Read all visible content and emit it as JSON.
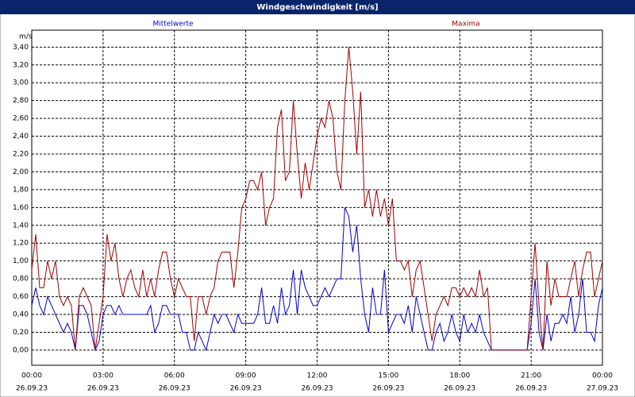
{
  "chart_data": {
    "type": "line",
    "title": "Windgeschwindigkeit [m/s]",
    "ylabel": "m/s",
    "x": [
      0,
      10,
      20,
      30,
      40,
      50,
      60,
      70,
      80,
      90,
      100,
      110,
      120,
      130,
      140,
      150,
      160,
      170,
      180,
      190,
      200,
      210,
      220,
      230,
      240,
      250,
      260,
      270,
      280,
      290,
      300,
      310,
      320,
      330,
      340,
      350,
      360,
      370,
      380,
      390,
      400,
      410,
      420,
      430,
      440,
      450,
      460,
      470,
      480,
      490,
      500,
      510,
      520,
      530,
      540,
      550,
      560,
      570,
      580,
      590,
      600,
      610,
      620,
      630,
      640,
      650,
      660,
      670,
      680,
      690,
      700,
      710,
      720,
      730,
      740,
      750,
      760,
      770,
      780,
      790,
      800,
      810,
      820,
      830,
      840,
      850,
      860,
      870,
      880,
      890,
      900,
      910,
      920,
      930,
      940,
      950,
      960,
      970,
      980,
      990,
      1000,
      1010,
      1020,
      1030,
      1040,
      1050,
      1060,
      1070,
      1080,
      1090,
      1100,
      1110,
      1120,
      1130,
      1140,
      1150,
      1160,
      1170,
      1180,
      1190,
      1200,
      1210,
      1220,
      1230,
      1240,
      1250,
      1260,
      1270,
      1280,
      1290,
      1300,
      1310,
      1320,
      1330,
      1340,
      1350,
      1360,
      1370,
      1380,
      1390,
      1400,
      1410,
      1420,
      1430,
      1440
    ],
    "series": [
      {
        "name": "Mittelwerte",
        "color": "#0000cc",
        "values": [
          0.5,
          0.7,
          0.5,
          0.4,
          0.6,
          0.5,
          0.4,
          0.3,
          0.2,
          0.3,
          0.2,
          0.0,
          0.5,
          0.5,
          0.4,
          0.2,
          0.0,
          0.1,
          0.4,
          0.5,
          0.5,
          0.4,
          0.5,
          0.4,
          0.4,
          0.4,
          0.4,
          0.4,
          0.4,
          0.4,
          0.5,
          0.2,
          0.3,
          0.5,
          0.5,
          0.4,
          0.4,
          0.4,
          0.2,
          0.2,
          0.0,
          0.0,
          0.2,
          0.1,
          0.0,
          0.2,
          0.4,
          0.3,
          0.4,
          0.4,
          0.3,
          0.2,
          0.4,
          0.3,
          0.3,
          0.3,
          0.3,
          0.4,
          0.7,
          0.3,
          0.3,
          0.5,
          0.3,
          0.7,
          0.4,
          0.5,
          0.9,
          0.4,
          0.9,
          0.7,
          0.6,
          0.5,
          0.5,
          0.6,
          0.7,
          0.6,
          0.7,
          0.8,
          0.8,
          1.6,
          1.5,
          1.1,
          1.4,
          0.8,
          0.4,
          0.2,
          0.7,
          0.4,
          0.4,
          0.9,
          0.2,
          0.3,
          0.4,
          0.4,
          0.3,
          0.5,
          0.2,
          0.6,
          0.4,
          0.2,
          0.0,
          0.0,
          0.2,
          0.3,
          0.1,
          0.2,
          0.4,
          0.2,
          0.1,
          0.4,
          0.2,
          0.3,
          0.2,
          0.4,
          0.2,
          0.1,
          0.0,
          0.0,
          0.0,
          0.0,
          0.0,
          0.0,
          0.0,
          0.0,
          0.0,
          0.0,
          0.3,
          0.8,
          0.2,
          0.0,
          0.4,
          0.1,
          0.3,
          0.3,
          0.4,
          0.3,
          0.6,
          0.2,
          0.4,
          0.8,
          0.2,
          0.2,
          0.1,
          0.5,
          0.7
        ]
      },
      {
        "name": "Maxima",
        "color": "#a00000",
        "values": [
          0.9,
          1.3,
          0.7,
          0.7,
          1.0,
          0.8,
          1.0,
          0.6,
          0.5,
          0.6,
          0.5,
          0.0,
          0.6,
          0.7,
          0.6,
          0.5,
          0.0,
          0.3,
          0.6,
          1.3,
          1.0,
          1.2,
          0.8,
          0.6,
          0.8,
          0.9,
          0.7,
          0.6,
          0.9,
          0.6,
          0.8,
          0.6,
          0.9,
          1.1,
          1.1,
          0.8,
          0.6,
          0.8,
          0.7,
          0.6,
          0.6,
          0.1,
          0.6,
          0.6,
          0.4,
          0.6,
          0.7,
          1.0,
          1.1,
          1.1,
          1.1,
          0.7,
          1.1,
          1.6,
          1.7,
          1.9,
          1.9,
          1.8,
          2.0,
          1.4,
          1.6,
          1.7,
          2.5,
          2.7,
          1.9,
          2.0,
          2.8,
          2.2,
          1.7,
          2.1,
          1.8,
          2.1,
          2.4,
          2.6,
          2.5,
          2.8,
          2.6,
          2.0,
          1.8,
          2.8,
          3.4,
          2.9,
          2.2,
          2.9,
          1.6,
          1.8,
          1.5,
          1.8,
          1.5,
          1.7,
          1.4,
          1.7,
          1.0,
          1.0,
          0.9,
          1.0,
          0.6,
          0.9,
          1.0,
          0.7,
          0.4,
          0.1,
          0.4,
          0.5,
          0.6,
          0.5,
          0.7,
          0.7,
          0.6,
          0.7,
          0.6,
          0.7,
          0.6,
          0.9,
          0.6,
          0.7,
          0.0,
          0.0,
          0.0,
          0.0,
          0.0,
          0.0,
          0.0,
          0.0,
          0.0,
          0.0,
          0.6,
          1.2,
          0.5,
          0.0,
          1.0,
          0.5,
          0.8,
          0.6,
          0.6,
          0.6,
          0.8,
          1.0,
          0.6,
          0.9,
          1.1,
          1.1,
          0.6,
          0.8,
          1.0
        ]
      }
    ],
    "xlim": [
      0,
      1440
    ],
    "xticks": [
      {
        "value": 0,
        "label": "00:00",
        "date": "26.09.23"
      },
      {
        "value": 180,
        "label": "03:00",
        "date": "26.09.23"
      },
      {
        "value": 360,
        "label": "06:00",
        "date": "26.09.23"
      },
      {
        "value": 540,
        "label": "09:00",
        "date": "26.09.23"
      },
      {
        "value": 720,
        "label": "12:00",
        "date": "26.09.23"
      },
      {
        "value": 900,
        "label": "15:00",
        "date": "26.09.23"
      },
      {
        "value": 1080,
        "label": "18:00",
        "date": "26.09.23"
      },
      {
        "value": 1260,
        "label": "21:00",
        "date": "26.09.23"
      },
      {
        "value": 1440,
        "label": "00:00",
        "date": "27.09.23"
      }
    ],
    "ylim": [
      -0.17,
      3.59
    ],
    "yticks": [
      {
        "value": 0,
        "label": "0,00"
      },
      {
        "value": 0.2,
        "label": "0,20"
      },
      {
        "value": 0.4,
        "label": "0,40"
      },
      {
        "value": 0.6,
        "label": "0,60"
      },
      {
        "value": 0.8,
        "label": "0,80"
      },
      {
        "value": 1.0,
        "label": "1,00"
      },
      {
        "value": 1.2,
        "label": "1,20"
      },
      {
        "value": 1.4,
        "label": "1,40"
      },
      {
        "value": 1.6,
        "label": "1,60"
      },
      {
        "value": 1.8,
        "label": "1,80"
      },
      {
        "value": 2.0,
        "label": "2,00"
      },
      {
        "value": 2.2,
        "label": "2,20"
      },
      {
        "value": 2.4,
        "label": "2,40"
      },
      {
        "value": 2.6,
        "label": "2,60"
      },
      {
        "value": 2.8,
        "label": "2,80"
      },
      {
        "value": 3.0,
        "label": "3,00"
      },
      {
        "value": 3.2,
        "label": "3,20"
      },
      {
        "value": 3.4,
        "label": "3,40"
      }
    ],
    "grid": true
  }
}
